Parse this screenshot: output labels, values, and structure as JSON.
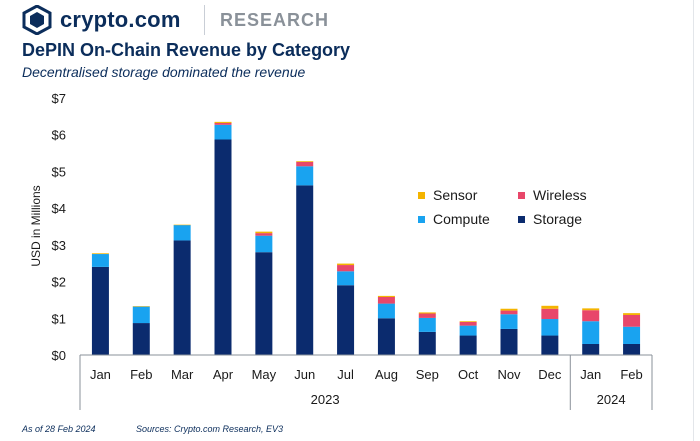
{
  "header": {
    "brand": "crypto.com",
    "section": "RESEARCH"
  },
  "title": "DePIN On-Chain Revenue by Category",
  "subtitle": "Decentralised storage dominated the revenue",
  "footer": {
    "as_of": "As of 28 Feb 2024",
    "sources": "Sources: Crypto.com Research, EV3"
  },
  "chart_data": {
    "type": "bar",
    "stacked": true,
    "ylabel": "USD in Millions",
    "ylim": [
      0,
      7
    ],
    "yticks": [
      "$0",
      "$1",
      "$2",
      "$3",
      "$4",
      "$5",
      "$6",
      "$7"
    ],
    "grid": false,
    "legend_position": "right",
    "categories": [
      "Jan",
      "Feb",
      "Mar",
      "Apr",
      "May",
      "Jun",
      "Jul",
      "Aug",
      "Sep",
      "Oct",
      "Nov",
      "Dec",
      "Jan",
      "Feb"
    ],
    "year_groups": [
      {
        "label": "2023",
        "count": 12
      },
      {
        "label": "2024",
        "count": 2
      }
    ],
    "series": [
      {
        "name": "Storage",
        "color": "#0b2b6e",
        "values": [
          2.4,
          0.87,
          3.12,
          5.87,
          2.8,
          4.62,
          1.9,
          1.0,
          0.63,
          0.53,
          0.71,
          0.53,
          0.3,
          0.3
        ]
      },
      {
        "name": "Compute",
        "color": "#19a3f0",
        "values": [
          0.35,
          0.45,
          0.42,
          0.4,
          0.45,
          0.52,
          0.38,
          0.4,
          0.38,
          0.27,
          0.4,
          0.45,
          0.62,
          0.47
        ]
      },
      {
        "name": "Wireless",
        "color": "#e8476a",
        "values": [
          0.0,
          0.0,
          0.0,
          0.05,
          0.07,
          0.12,
          0.17,
          0.18,
          0.12,
          0.1,
          0.1,
          0.28,
          0.3,
          0.32
        ]
      },
      {
        "name": "Sensor",
        "color": "#f4b400",
        "values": [
          0.02,
          0.01,
          0.01,
          0.03,
          0.04,
          0.02,
          0.04,
          0.03,
          0.03,
          0.02,
          0.05,
          0.08,
          0.05,
          0.05
        ]
      }
    ],
    "legend_order": [
      "Sensor",
      "Wireless",
      "Compute",
      "Storage"
    ]
  },
  "colors": {
    "brand_navy": "#0b2d5b",
    "axis": "#8a9199"
  },
  "icons": {
    "logo": "crypto-com-lion-icon"
  }
}
